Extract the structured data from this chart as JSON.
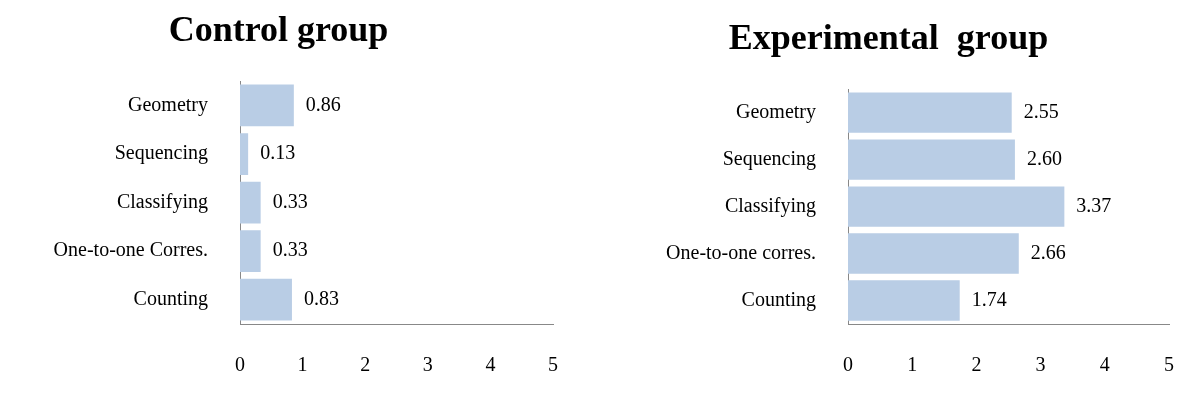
{
  "chart_data": [
    {
      "type": "bar",
      "orientation": "horizontal",
      "title": "Control group",
      "categories": [
        "Geometry",
        "Sequencing",
        "Classifying",
        "One-to-one Corres.",
        "Counting"
      ],
      "values": [
        0.86,
        0.13,
        0.33,
        0.33,
        0.83
      ],
      "value_labels": [
        "0.86",
        "0.13",
        "0.33",
        "0.33",
        "0.83"
      ],
      "color": "#b9cde5",
      "xlim": [
        0,
        5
      ],
      "xticks": [
        0,
        1,
        2,
        3,
        4,
        5
      ]
    },
    {
      "type": "bar",
      "orientation": "horizontal",
      "title": "Experimental  group",
      "categories": [
        "Geometry",
        "Sequencing",
        "Classifying",
        "One-to-one corres.",
        "Counting"
      ],
      "values": [
        2.55,
        2.6,
        3.37,
        2.66,
        1.74
      ],
      "value_labels": [
        "2.55",
        "2.60",
        "3.37",
        "2.66",
        "1.74"
      ],
      "color": "#b9cde5",
      "xlim": [
        0,
        5
      ],
      "xticks": [
        0,
        1,
        2,
        3,
        4,
        5
      ]
    }
  ]
}
